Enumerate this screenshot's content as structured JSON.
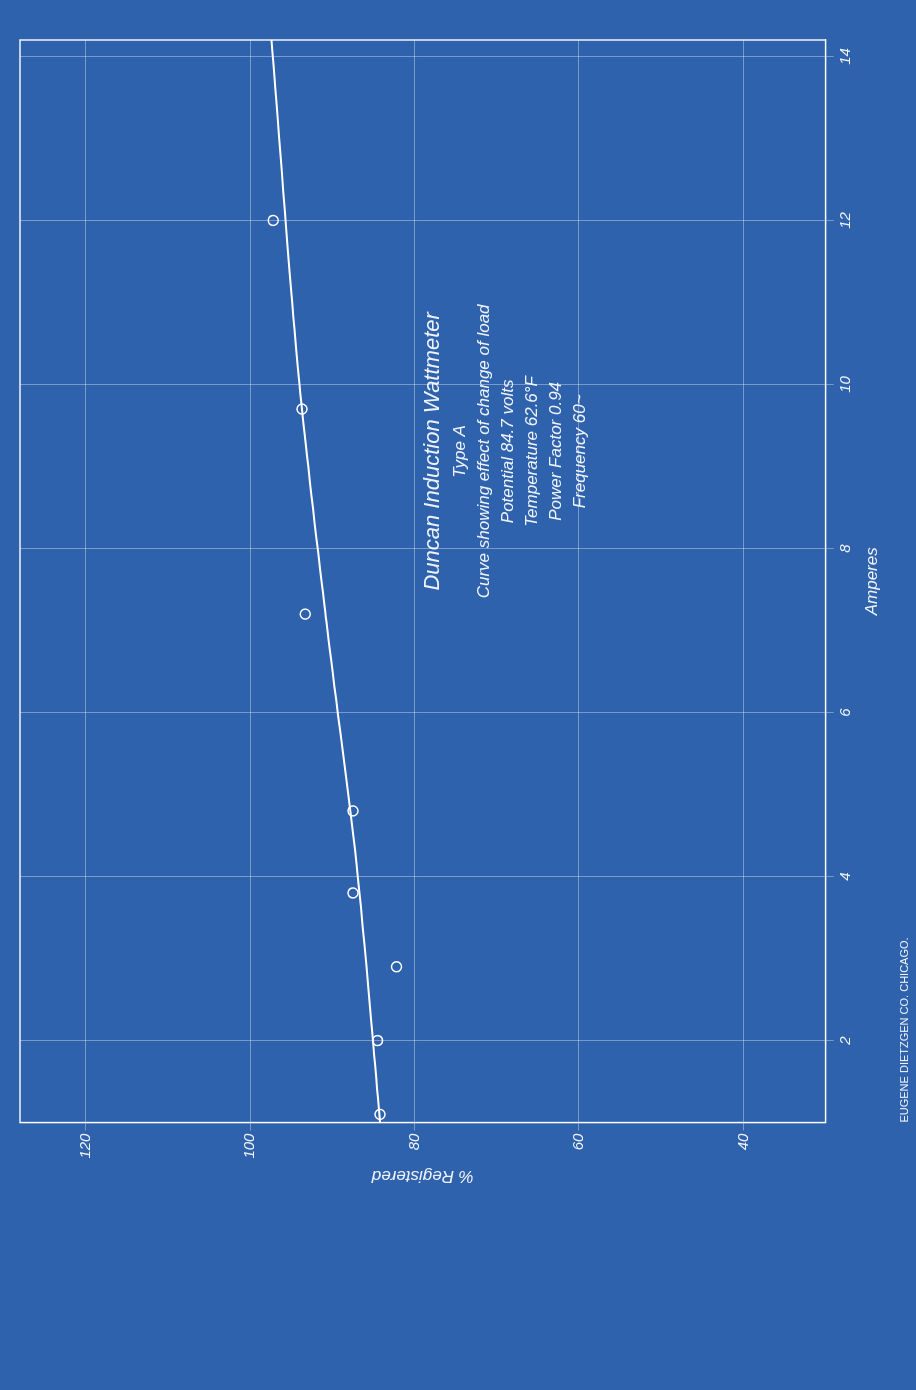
{
  "chart_data": {
    "type": "scatter",
    "title": "Duncan Induction Wattmeter",
    "subtitle": [
      "Type A",
      "Curve showing effect of change of load",
      "Potential 84.7 volts",
      "Temperature 62.6°F",
      "Power Factor 0.94",
      "Frequency 60~"
    ],
    "x_label": "Amperes",
    "y_label": "% Registered",
    "annotations": [
      "EUGENE DIETZGEN CO. CHICAGO."
    ],
    "series": [
      {
        "type": "scatter",
        "marker": "circle",
        "color": "#ffffff",
        "x": [
          1.1,
          2.0,
          2.9,
          3.8,
          4.8,
          7.2,
          9.7,
          12.0
        ],
        "values": [
          84.2,
          84.5,
          82.2,
          87.5,
          87.5,
          93.3,
          93.7,
          97.2
        ]
      },
      {
        "type": "line",
        "line_style": "solid",
        "color": "#ffffff",
        "x": [
          1,
          4,
          7,
          10,
          14.2
        ],
        "values": [
          84.2,
          86.9,
          90.6,
          94,
          97.4
        ]
      }
    ],
    "xlim": [
      1,
      14.2
    ],
    "xticks": [
      2,
      4,
      6,
      8,
      10,
      12,
      14
    ],
    "ylim": [
      30,
      128
    ],
    "yticks": [
      40,
      60,
      80,
      100,
      120
    ],
    "grid": true
  }
}
